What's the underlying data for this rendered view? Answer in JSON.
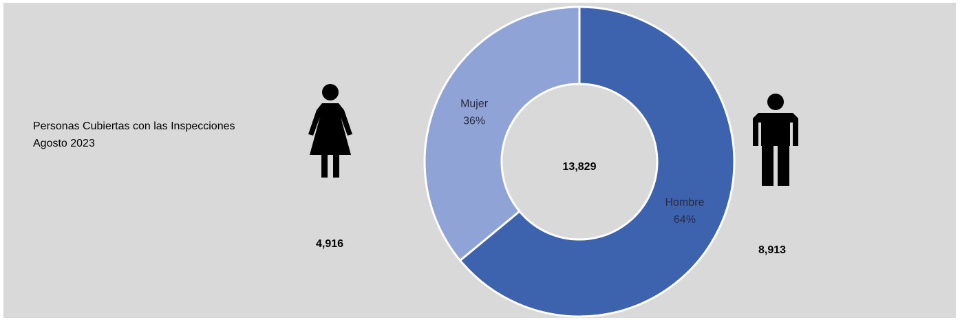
{
  "chart_data": {
    "type": "donut",
    "title": "Personas Cubiertas con las Inspecciones",
    "subtitle": "Agosto 2023",
    "categories": [
      "Hombre",
      "Mujer"
    ],
    "values": [
      64,
      36
    ],
    "value_labels": [
      "64%",
      "36%"
    ],
    "colors": [
      "#3d63ae",
      "#8fa3d6"
    ],
    "center_label": "13,829",
    "count_labels": [
      "8,913",
      "4,916"
    ]
  }
}
